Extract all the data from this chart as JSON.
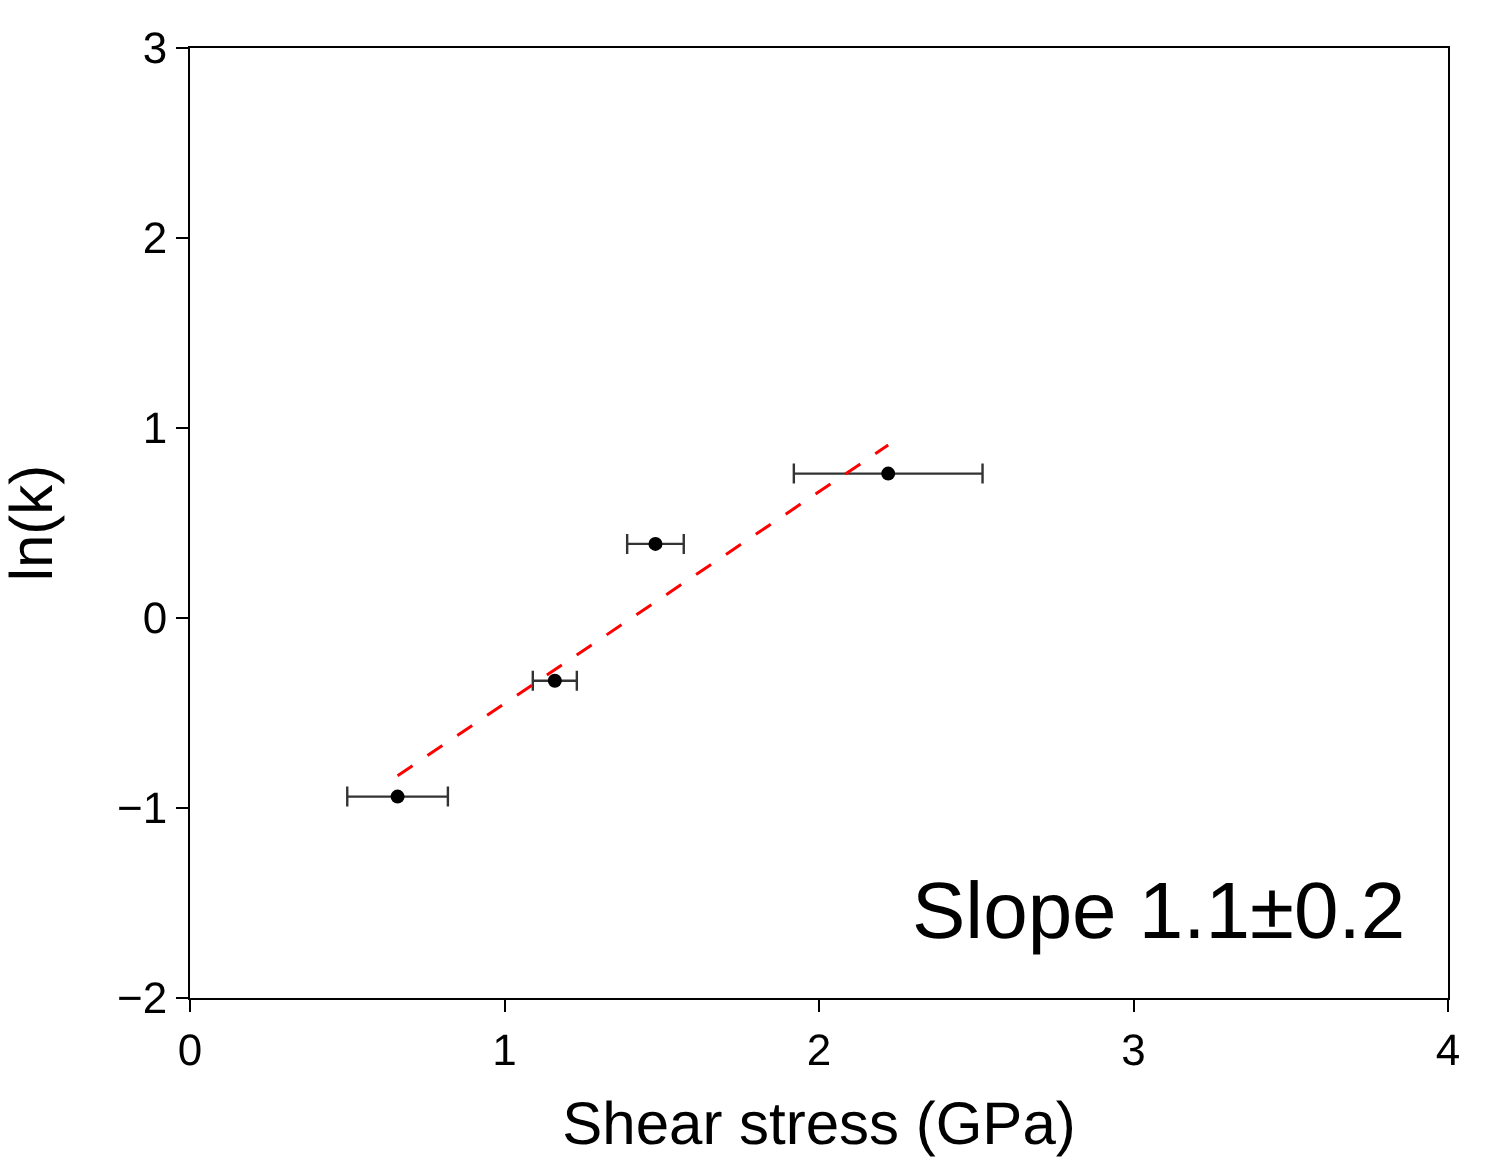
{
  "chart_data": {
    "type": "scatter",
    "xlabel": "Shear stress (GPa)",
    "ylabel": "ln(k)",
    "xlim": [
      0,
      4
    ],
    "ylim": [
      -2,
      3
    ],
    "xticks": [
      0,
      1,
      2,
      3,
      4
    ],
    "yticks": [
      -2,
      -1,
      0,
      1,
      2,
      3
    ],
    "grid": false,
    "series": [
      {
        "type": "scatter",
        "color": "#000000",
        "marker": "circle",
        "x": [
          0.66,
          1.16,
          1.48,
          2.22
        ],
        "values": [
          -0.94,
          -0.33,
          0.39,
          0.76
        ],
        "xerrors": [
          0.16,
          0.07,
          0.09,
          0.3
        ]
      },
      {
        "type": "line",
        "color": "#ff0000",
        "marker": "none",
        "line_style": "dashed",
        "x": [
          0.66,
          2.22
        ],
        "values": [
          -0.83,
          0.91
        ]
      }
    ],
    "annotations": [
      "Slope 1.1±0.2"
    ]
  }
}
